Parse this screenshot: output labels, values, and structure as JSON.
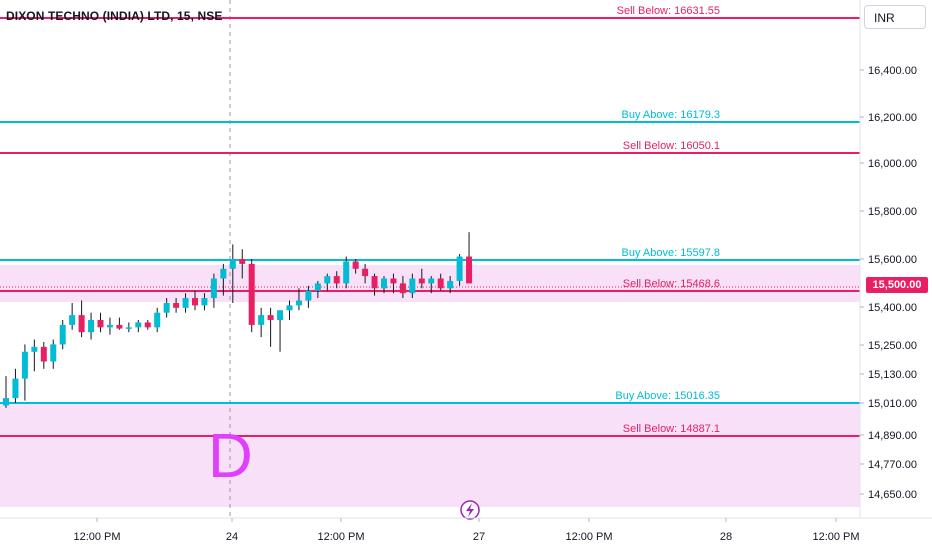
{
  "header": {
    "title": "DIXON TECHNO (INDIA) LTD, 15, NSE",
    "currency": "INR"
  },
  "colors": {
    "sell": "#e91e63",
    "buy": "#00bcd4",
    "zone": "#f8e1f8",
    "bull": "#00bcd4",
    "bear": "#e91e63",
    "watermark": "#e040fb"
  },
  "price_axis": {
    "ticks": [
      "16,400.00",
      "16,200.00",
      "16,000.00",
      "15,800.00",
      "15,600.00",
      "15,400.00",
      "15,250.00",
      "15,130.00",
      "15,010.00",
      "14,890.00",
      "14,770.00",
      "14,650.00"
    ],
    "current_price": "15,500.00"
  },
  "time_axis": {
    "ticks": [
      "12:00 PM",
      "24",
      "12:00 PM",
      "27",
      "12:00 PM",
      "28",
      "12:00 PM"
    ]
  },
  "levels": [
    {
      "label": "Sell Below: 16631.55",
      "type": "sell"
    },
    {
      "label": "Buy Above: 16179.3",
      "type": "buy"
    },
    {
      "label": "Sell Below: 16050.1",
      "type": "sell"
    },
    {
      "label": "Buy Above: 15597.8",
      "type": "buy"
    },
    {
      "label": "Sell Below: 15468.6",
      "type": "sell"
    },
    {
      "label": "Buy Above: 15016.35",
      "type": "buy"
    },
    {
      "label": "Sell Below: 14887.1",
      "type": "sell"
    }
  ],
  "watermark_letter": "D",
  "event_icon": "lightning-icon",
  "chart_data": {
    "type": "candlestick",
    "series": [
      {
        "o": 15000,
        "h": 15120,
        "l": 14990,
        "c": 15030
      },
      {
        "o": 15030,
        "h": 15150,
        "l": 15010,
        "c": 15110
      },
      {
        "o": 15110,
        "h": 15250,
        "l": 15020,
        "c": 15220
      },
      {
        "o": 15220,
        "h": 15270,
        "l": 15140,
        "c": 15240
      },
      {
        "o": 15240,
        "h": 15260,
        "l": 15150,
        "c": 15180
      },
      {
        "o": 15180,
        "h": 15270,
        "l": 15150,
        "c": 15250
      },
      {
        "o": 15250,
        "h": 15350,
        "l": 15230,
        "c": 15330
      },
      {
        "o": 15330,
        "h": 15420,
        "l": 15310,
        "c": 15370
      },
      {
        "o": 15370,
        "h": 15430,
        "l": 15280,
        "c": 15300
      },
      {
        "o": 15300,
        "h": 15380,
        "l": 15270,
        "c": 15350
      },
      {
        "o": 15350,
        "h": 15380,
        "l": 15300,
        "c": 15320
      },
      {
        "o": 15320,
        "h": 15360,
        "l": 15290,
        "c": 15330
      },
      {
        "o": 15330,
        "h": 15360,
        "l": 15310,
        "c": 15315
      },
      {
        "o": 15315,
        "h": 15340,
        "l": 15300,
        "c": 15320
      },
      {
        "o": 15320,
        "h": 15350,
        "l": 15300,
        "c": 15340
      },
      {
        "o": 15340,
        "h": 15350,
        "l": 15310,
        "c": 15320
      },
      {
        "o": 15320,
        "h": 15400,
        "l": 15300,
        "c": 15380
      },
      {
        "o": 15380,
        "h": 15440,
        "l": 15360,
        "c": 15420
      },
      {
        "o": 15420,
        "h": 15440,
        "l": 15380,
        "c": 15400
      },
      {
        "o": 15400,
        "h": 15460,
        "l": 15380,
        "c": 15440
      },
      {
        "o": 15440,
        "h": 15470,
        "l": 15390,
        "c": 15410
      },
      {
        "o": 15410,
        "h": 15460,
        "l": 15390,
        "c": 15440
      },
      {
        "o": 15440,
        "h": 15540,
        "l": 15400,
        "c": 15520
      },
      {
        "o": 15520,
        "h": 15580,
        "l": 15450,
        "c": 15560
      },
      {
        "o": 15560,
        "h": 15660,
        "l": 15420,
        "c": 15600
      },
      {
        "o": 15600,
        "h": 15640,
        "l": 15520,
        "c": 15580
      },
      {
        "o": 15580,
        "h": 15600,
        "l": 15300,
        "c": 15330
      },
      {
        "o": 15330,
        "h": 15400,
        "l": 15280,
        "c": 15370
      },
      {
        "o": 15370,
        "h": 15400,
        "l": 15240,
        "c": 15350
      },
      {
        "o": 15350,
        "h": 15380,
        "l": 15220,
        "c": 15390
      },
      {
        "o": 15390,
        "h": 15430,
        "l": 15350,
        "c": 15410
      },
      {
        "o": 15410,
        "h": 15480,
        "l": 15390,
        "c": 15430
      },
      {
        "o": 15430,
        "h": 15490,
        "l": 15400,
        "c": 15470
      },
      {
        "o": 15470,
        "h": 15510,
        "l": 15440,
        "c": 15500
      },
      {
        "o": 15500,
        "h": 15540,
        "l": 15470,
        "c": 15530
      },
      {
        "o": 15530,
        "h": 15550,
        "l": 15480,
        "c": 15500
      },
      {
        "o": 15500,
        "h": 15610,
        "l": 15480,
        "c": 15590
      },
      {
        "o": 15590,
        "h": 15600,
        "l": 15540,
        "c": 15560
      },
      {
        "o": 15560,
        "h": 15580,
        "l": 15500,
        "c": 15530
      },
      {
        "o": 15530,
        "h": 15540,
        "l": 15450,
        "c": 15480
      },
      {
        "o": 15480,
        "h": 15530,
        "l": 15460,
        "c": 15520
      },
      {
        "o": 15520,
        "h": 15540,
        "l": 15460,
        "c": 15500
      },
      {
        "o": 15500,
        "h": 15530,
        "l": 15440,
        "c": 15460
      },
      {
        "o": 15460,
        "h": 15540,
        "l": 15440,
        "c": 15520
      },
      {
        "o": 15520,
        "h": 15560,
        "l": 15480,
        "c": 15500
      },
      {
        "o": 15500,
        "h": 15530,
        "l": 15460,
        "c": 15520
      },
      {
        "o": 15520,
        "h": 15540,
        "l": 15470,
        "c": 15480
      },
      {
        "o": 15480,
        "h": 15530,
        "l": 15460,
        "c": 15510
      },
      {
        "o": 15510,
        "h": 15620,
        "l": 15490,
        "c": 15610
      },
      {
        "o": 15610,
        "h": 15710,
        "l": 15500,
        "c": 15500
      }
    ]
  }
}
